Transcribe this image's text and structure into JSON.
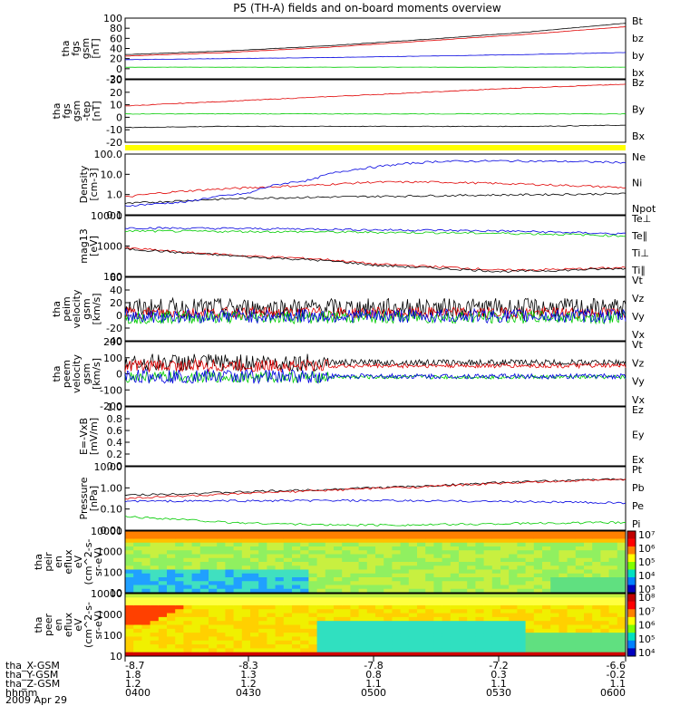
{
  "title": "P5 (TH-A) fields and on-board moments overview",
  "date_label": "2009 Apr 29",
  "colors": {
    "black": "#000000",
    "red": "#e00000",
    "green": "#00cc00",
    "blue": "#0000e0",
    "yellow": "#ffff00"
  },
  "chart_data": [
    {
      "type": "line",
      "id": "fgs-gsm",
      "ylabel": [
        "tha",
        "fgs",
        "gsm",
        "[nT]"
      ],
      "yticks": [
        "100",
        "80",
        "60",
        "40",
        "20",
        "0",
        "-20"
      ],
      "ylim": [
        -20,
        100
      ],
      "series": [
        {
          "name": "Bt",
          "color": "black",
          "values": [
            28,
            35,
            45,
            58,
            72,
            90
          ]
        },
        {
          "name": "bz",
          "color": "red",
          "values": [
            25,
            32,
            42,
            55,
            68,
            83
          ]
        },
        {
          "name": "by",
          "color": "green",
          "values": [
            3,
            3,
            3,
            3,
            3,
            3
          ]
        },
        {
          "name": "bx",
          "color": "blue",
          "values": [
            18,
            20,
            22,
            25,
            28,
            32
          ]
        }
      ]
    },
    {
      "type": "line",
      "id": "fgs-gse",
      "ylabel": [
        "tha",
        "fgs",
        "gsm",
        "-tep",
        "[nT]"
      ],
      "yticks": [
        "30",
        "20",
        "10",
        "0",
        "-10",
        "-20"
      ],
      "ylim": [
        -25,
        30
      ],
      "series": [
        {
          "name": "Bz",
          "color": "red",
          "values": [
            7,
            11,
            15,
            19,
            23,
            26
          ]
        },
        {
          "name": "By",
          "color": "green",
          "values": [
            0,
            0,
            0,
            0,
            0,
            0
          ]
        },
        {
          "name": "Bx",
          "color": "black",
          "values": [
            -12,
            -11,
            -11,
            -11,
            -11,
            -10
          ]
        }
      ]
    },
    {
      "type": "line",
      "id": "density",
      "log": true,
      "ylabel": [
        "Density",
        "[cm-3]"
      ],
      "yticks": [
        "100.0",
        "10.0",
        "1.0",
        "0.1"
      ],
      "ylim": [
        0.1,
        200
      ],
      "series": [
        {
          "name": "Ne",
          "color": "red",
          "values": [
            0.9,
            2,
            3,
            4,
            6,
            6,
            5,
            4,
            3
          ]
        },
        {
          "name": "Ni",
          "color": "black",
          "values": [
            0.4,
            0.6,
            0.8,
            0.9,
            1,
            1.1,
            1.2,
            1.3,
            1.4
          ]
        },
        {
          "name": "Npot",
          "color": "blue",
          "values": [
            0.3,
            0.5,
            1.5,
            8,
            40,
            80,
            85,
            80,
            70
          ]
        }
      ]
    },
    {
      "type": "line",
      "id": "temperature",
      "log": true,
      "ylabel": [
        "mag13",
        "[eV]"
      ],
      "yticks": [
        "10000",
        "1000",
        "100"
      ],
      "ylim": [
        20,
        20000
      ],
      "series": [
        {
          "name": "Te⊥",
          "color": "red",
          "values": [
            500,
            300,
            200,
            150,
            80,
            60,
            40,
            45,
            55
          ]
        },
        {
          "name": "Te∥",
          "color": "black",
          "values": [
            450,
            280,
            180,
            130,
            70,
            50,
            35,
            40,
            50
          ]
        },
        {
          "name": "Ti⊥",
          "color": "blue",
          "values": [
            5000,
            4800,
            4600,
            4400,
            4000,
            3800,
            3500,
            3000,
            2500
          ]
        },
        {
          "name": "Ti∥",
          "color": "green",
          "values": [
            3500,
            3400,
            3300,
            3200,
            3000,
            2900,
            2700,
            2400,
            2000
          ]
        }
      ]
    },
    {
      "type": "line",
      "id": "peim-velocity",
      "ylabel": [
        "tha",
        "peim",
        "velocity",
        "gsm",
        "[km/s]"
      ],
      "yticks": [
        "60",
        "40",
        "20",
        "0",
        "-20",
        "-40"
      ],
      "ylim": [
        -40,
        60
      ],
      "series": [
        {
          "name": "Vt",
          "color": "black"
        },
        {
          "name": "Vz",
          "color": "red"
        },
        {
          "name": "Vy",
          "color": "green"
        },
        {
          "name": "Vx",
          "color": "blue"
        }
      ]
    },
    {
      "type": "line",
      "id": "peem-velocity",
      "ylabel": [
        "tha",
        "peem",
        "velocity",
        "gsm",
        "[km/s]"
      ],
      "yticks": [
        "200",
        "100",
        "0",
        "-100",
        "-200"
      ],
      "ylim": [
        -200,
        200
      ],
      "series": [
        {
          "name": "Vt",
          "color": "black"
        },
        {
          "name": "Vz",
          "color": "red"
        },
        {
          "name": "Vy",
          "color": "green"
        },
        {
          "name": "Vx",
          "color": "blue"
        }
      ]
    },
    {
      "type": "line",
      "id": "efield",
      "ylabel": [
        "E=-VxB",
        "[mV/m]"
      ],
      "yticks": [
        "1.0",
        "0.8",
        "0.6",
        "0.4",
        "0.2",
        "0.0"
      ],
      "ylim": [
        0,
        1
      ],
      "series": [
        {
          "name": "Ez",
          "color": "red"
        },
        {
          "name": "Ey",
          "color": "green"
        },
        {
          "name": "Ex",
          "color": "blue"
        }
      ]
    },
    {
      "type": "line",
      "id": "pressure",
      "log": true,
      "ylabel": [
        "Pressure",
        "[nPa]"
      ],
      "yticks": [
        "10.00",
        "1.00",
        "0.10",
        "0.01"
      ],
      "ylim": [
        0.008,
        15
      ],
      "series": [
        {
          "name": "Pt",
          "color": "black",
          "values": [
            0.5,
            0.7,
            1,
            1.5,
            2.5,
            3.5
          ]
        },
        {
          "name": "Pb",
          "color": "red",
          "values": [
            0.35,
            0.55,
            0.9,
            1.4,
            2.3,
            3.3
          ]
        },
        {
          "name": "Pe",
          "color": "green",
          "values": [
            0.04,
            0.02,
            0.015,
            0.015,
            0.018,
            0.02
          ]
        },
        {
          "name": "Pi",
          "color": "blue",
          "values": [
            0.25,
            0.26,
            0.27,
            0.26,
            0.24,
            0.2
          ]
        }
      ]
    },
    {
      "type": "heatmap",
      "id": "peir",
      "ylabel": [
        "tha",
        "peir",
        "en",
        "eflux",
        "eV",
        "(cm^2-s-",
        "sr-eV)"
      ],
      "yticks": [
        "10000",
        "1000",
        "100",
        "10"
      ],
      "colorbar": {
        "ticks": [
          "10⁷",
          "10⁶",
          "10⁵",
          "10⁴",
          "10³"
        ]
      }
    },
    {
      "type": "heatmap",
      "id": "peer",
      "ylabel": [
        "tha",
        "peer",
        "en",
        "eflux",
        "eV",
        "(cm^2-s-",
        "sr-eV)"
      ],
      "yticks": [
        "10000",
        "1000",
        "100",
        "10"
      ],
      "colorbar": {
        "ticks": [
          "10⁸",
          "10⁷",
          "10⁶",
          "10⁵",
          "10⁴"
        ]
      }
    }
  ],
  "xaxis": {
    "rows": [
      {
        "label": "tha_X-GSM",
        "values": [
          "-8.7",
          "-8.3",
          "-7.8",
          "-7.2",
          "-6.6"
        ]
      },
      {
        "label": "tha_Y-GSM",
        "values": [
          "1.8",
          "1.3",
          "0.8",
          "0.3",
          "-0.2"
        ]
      },
      {
        "label": "tha_Z-GSM",
        "values": [
          "1.2",
          "1.2",
          "1.1",
          "1.1",
          "1.1"
        ]
      },
      {
        "label": "hhmm",
        "values": [
          "0400",
          "0430",
          "0500",
          "0530",
          "0600"
        ]
      }
    ]
  }
}
